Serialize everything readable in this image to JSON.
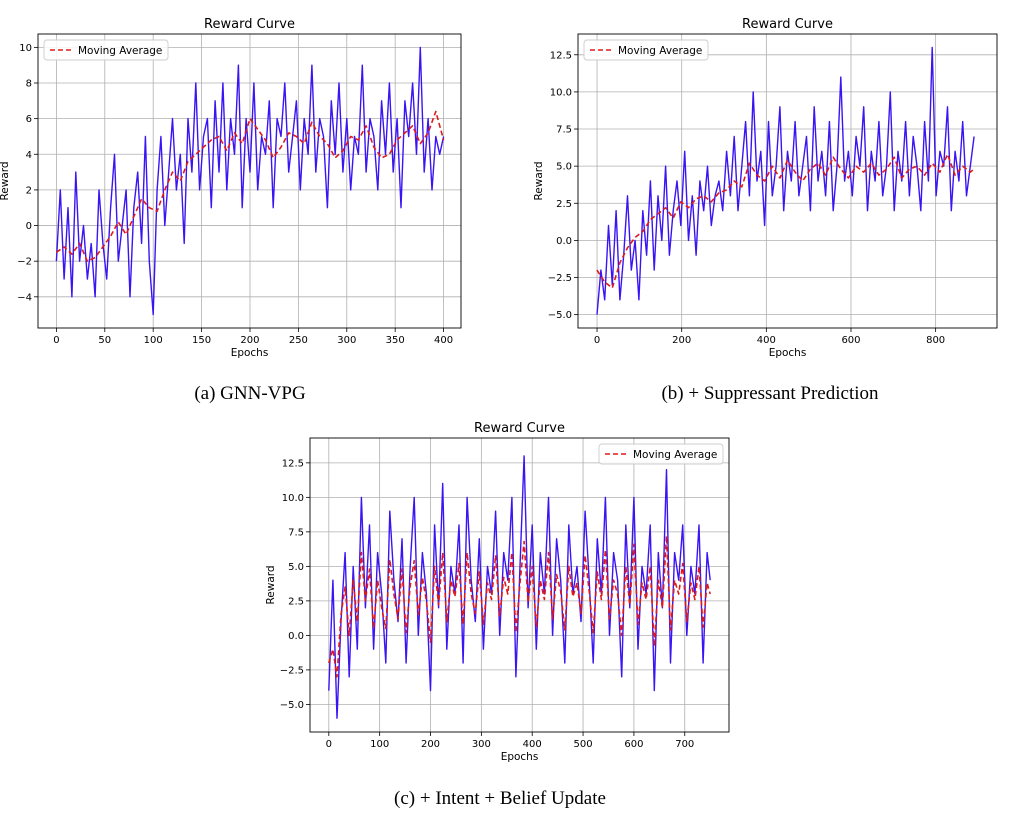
{
  "figure": {
    "captions": [
      "(a) GNN-VPG",
      "(b) + Suppressant Prediction",
      "(c) + Intent + Belief Update"
    ]
  },
  "colors": {
    "raw": "#3a14f5",
    "moving_average": "#e01a1a",
    "grid": "#b0b0b0",
    "frame": "#000000"
  },
  "chart_data": [
    {
      "type": "line",
      "title": "Reward Curve",
      "xlabel": "Epochs",
      "ylabel": "Reward",
      "xlim": [
        -19,
        418
      ],
      "ylim": [
        -5.75,
        10.75
      ],
      "xticks": [
        0,
        50,
        100,
        150,
        200,
        250,
        300,
        350,
        400
      ],
      "yticks": [
        -4,
        -2,
        0,
        2,
        4,
        6,
        8,
        10
      ],
      "tick_labels_y": [
        "−4",
        "−2",
        "0",
        "2",
        "4",
        "6",
        "8",
        "10"
      ],
      "grid": true,
      "legend": {
        "placement": "top-left",
        "entries": [
          "Moving Average"
        ]
      },
      "series": [
        {
          "style": "solid",
          "color": "#3a14f5",
          "x": [
            0,
            4,
            8,
            12,
            16,
            20,
            24,
            28,
            32,
            36,
            40,
            44,
            48,
            52,
            56,
            60,
            64,
            68,
            72,
            76,
            80,
            84,
            88,
            92,
            96,
            100,
            104,
            108,
            112,
            116,
            120,
            124,
            128,
            132,
            136,
            140,
            144,
            148,
            152,
            156,
            160,
            164,
            168,
            172,
            176,
            180,
            184,
            188,
            192,
            196,
            200,
            204,
            208,
            212,
            216,
            220,
            224,
            228,
            232,
            236,
            240,
            244,
            248,
            252,
            256,
            260,
            264,
            268,
            272,
            276,
            280,
            284,
            288,
            292,
            296,
            300,
            304,
            308,
            312,
            316,
            320,
            324,
            328,
            332,
            336,
            340,
            344,
            348,
            352,
            356,
            360,
            364,
            368,
            372,
            376,
            380,
            384,
            388,
            392,
            396,
            400
          ],
          "y": [
            -2,
            2,
            -3,
            1,
            -4,
            3,
            -2,
            0,
            -3,
            -1,
            -4,
            2,
            -1,
            -3,
            1,
            4,
            -2,
            0,
            2,
            -4,
            1,
            3,
            -1,
            5,
            -2,
            -5,
            2,
            5,
            0,
            3,
            6,
            2,
            4,
            -1,
            6,
            3,
            8,
            2,
            5,
            6,
            1,
            7,
            3,
            8,
            2,
            6,
            4,
            9,
            1,
            6,
            3,
            8,
            2,
            5,
            4,
            7,
            1,
            6,
            5,
            8,
            3,
            5,
            7,
            2,
            6,
            4,
            9,
            3,
            6,
            5,
            1,
            7,
            4,
            8,
            3,
            6,
            2,
            5,
            4,
            9,
            3,
            6,
            5,
            2,
            7,
            4,
            8,
            3,
            6,
            1,
            7,
            5,
            8,
            4,
            10,
            3,
            6,
            2,
            5,
            4,
            5
          ]
        },
        {
          "name": "Moving Average",
          "style": "dashed",
          "color": "#e01a1a",
          "x": [
            0,
            8,
            16,
            24,
            32,
            40,
            48,
            56,
            64,
            72,
            80,
            88,
            96,
            104,
            112,
            120,
            128,
            136,
            144,
            152,
            160,
            168,
            176,
            184,
            192,
            200,
            208,
            216,
            224,
            232,
            240,
            248,
            256,
            264,
            272,
            280,
            288,
            296,
            304,
            312,
            320,
            328,
            336,
            344,
            352,
            360,
            368,
            376,
            384,
            392,
            400
          ],
          "y": [
            -1.5,
            -1.2,
            -1.6,
            -1.0,
            -2.0,
            -1.8,
            -1.2,
            -0.6,
            0.2,
            -0.5,
            0.5,
            1.5,
            1.0,
            0.8,
            2.0,
            3.0,
            2.5,
            3.6,
            4.0,
            4.4,
            4.8,
            5.0,
            4.2,
            5.2,
            4.6,
            6.0,
            5.4,
            4.8,
            3.8,
            4.4,
            5.2,
            5.0,
            4.6,
            5.8,
            5.0,
            4.6,
            3.8,
            4.2,
            5.0,
            4.8,
            5.6,
            4.4,
            3.8,
            4.0,
            4.8,
            5.2,
            5.6,
            4.6,
            5.2,
            6.4,
            4.8
          ]
        }
      ]
    },
    {
      "type": "line",
      "title": "Reward Curve",
      "xlabel": "Epochs",
      "ylabel": "Reward",
      "xlim": [
        -45,
        945
      ],
      "ylim": [
        -5.9,
        13.9
      ],
      "xticks": [
        0,
        200,
        400,
        600,
        800
      ],
      "yticks": [
        -5.0,
        -2.5,
        0.0,
        2.5,
        5.0,
        7.5,
        10.0,
        12.5
      ],
      "tick_labels_y": [
        "−5.0",
        "−2.5",
        "0.0",
        "2.5",
        "5.0",
        "7.5",
        "10.0",
        "12.5"
      ],
      "grid": true,
      "legend": {
        "placement": "top-left",
        "entries": [
          "Moving Average"
        ]
      },
      "series": [
        {
          "style": "solid",
          "color": "#3a14f5",
          "x": [
            0,
            9,
            18,
            27,
            36,
            45,
            54,
            63,
            72,
            81,
            90,
            99,
            108,
            117,
            126,
            135,
            144,
            153,
            162,
            171,
            180,
            189,
            198,
            207,
            216,
            225,
            234,
            243,
            252,
            261,
            270,
            279,
            288,
            297,
            306,
            315,
            324,
            333,
            342,
            351,
            360,
            369,
            378,
            387,
            396,
            405,
            414,
            423,
            432,
            441,
            450,
            459,
            468,
            477,
            486,
            495,
            504,
            513,
            522,
            531,
            540,
            549,
            558,
            567,
            576,
            585,
            594,
            603,
            612,
            621,
            630,
            639,
            648,
            657,
            666,
            675,
            684,
            693,
            702,
            711,
            720,
            729,
            738,
            747,
            756,
            765,
            774,
            783,
            792,
            801,
            810,
            819,
            828,
            837,
            846,
            855,
            864,
            873,
            882,
            891
          ],
          "y": [
            -5,
            -2,
            -4,
            1,
            -3,
            2,
            -4,
            -1,
            3,
            -2,
            0,
            -4,
            2,
            -1,
            4,
            -2,
            3,
            0,
            5,
            -1,
            2,
            4,
            1,
            6,
            0,
            3,
            -1,
            4,
            2,
            5,
            1,
            3,
            4,
            2,
            6,
            3,
            7,
            2,
            5,
            8,
            3,
            10,
            4,
            6,
            1,
            8,
            3,
            5,
            9,
            2,
            6,
            4,
            8,
            3,
            5,
            7,
            2,
            9,
            4,
            6,
            3,
            8,
            2,
            5,
            11,
            4,
            6,
            3,
            7,
            5,
            9,
            2,
            6,
            4,
            8,
            3,
            5,
            10,
            2,
            6,
            4,
            8,
            3,
            7,
            5,
            2,
            8,
            4,
            13,
            3,
            6,
            5,
            9,
            2,
            6,
            4,
            8,
            3,
            5,
            7
          ]
        },
        {
          "name": "Moving Average",
          "style": "dashed",
          "color": "#e01a1a",
          "x": [
            0,
            18,
            36,
            54,
            72,
            90,
            108,
            126,
            144,
            162,
            180,
            198,
            216,
            234,
            252,
            270,
            288,
            306,
            324,
            342,
            360,
            378,
            396,
            414,
            432,
            450,
            468,
            486,
            504,
            522,
            540,
            558,
            576,
            594,
            612,
            630,
            648,
            666,
            684,
            702,
            720,
            738,
            756,
            774,
            792,
            810,
            828,
            846,
            864,
            882,
            891
          ],
          "y": [
            -2.0,
            -2.8,
            -3.2,
            -1.5,
            -0.5,
            0.2,
            0.6,
            1.4,
            1.8,
            2.2,
            1.5,
            2.6,
            2.2,
            2.8,
            3.0,
            2.6,
            3.2,
            3.4,
            4.0,
            3.6,
            5.2,
            4.4,
            4.0,
            5.0,
            4.2,
            5.4,
            4.6,
            4.0,
            4.8,
            5.2,
            4.4,
            5.6,
            4.8,
            4.2,
            5.0,
            4.6,
            5.2,
            4.4,
            4.8,
            5.6,
            4.2,
            4.8,
            5.0,
            4.4,
            5.2,
            4.6,
            5.8,
            4.4,
            5.0,
            4.6,
            4.8
          ]
        }
      ]
    },
    {
      "type": "line",
      "title": "Reward Curve",
      "xlabel": "Epochs",
      "ylabel": "Reward",
      "xlim": [
        -37,
        787
      ],
      "ylim": [
        -7.0,
        14.3
      ],
      "xticks": [
        0,
        100,
        200,
        300,
        400,
        500,
        600,
        700
      ],
      "yticks": [
        -5.0,
        -2.5,
        0.0,
        2.5,
        5.0,
        7.5,
        10.0,
        12.5
      ],
      "tick_labels_y": [
        "−5.0",
        "−2.5",
        "0.0",
        "2.5",
        "5.0",
        "7.5",
        "10.0",
        "12.5"
      ],
      "grid": true,
      "legend": {
        "placement": "top-right",
        "entries": [
          "Moving Average"
        ]
      },
      "series": [
        {
          "style": "solid",
          "color": "#3a14f5",
          "x": [
            0,
            8,
            16,
            24,
            32,
            40,
            48,
            56,
            64,
            72,
            80,
            88,
            96,
            104,
            112,
            120,
            128,
            136,
            144,
            152,
            160,
            168,
            176,
            184,
            192,
            200,
            208,
            216,
            224,
            232,
            240,
            248,
            256,
            264,
            272,
            280,
            288,
            296,
            304,
            312,
            320,
            328,
            336,
            344,
            352,
            360,
            368,
            376,
            384,
            392,
            400,
            408,
            416,
            424,
            432,
            440,
            448,
            456,
            464,
            472,
            480,
            488,
            496,
            504,
            512,
            520,
            528,
            536,
            544,
            552,
            560,
            568,
            576,
            584,
            592,
            600,
            608,
            616,
            624,
            632,
            640,
            648,
            656,
            664,
            672,
            680,
            688,
            696,
            704,
            712,
            720,
            728,
            736,
            744,
            750
          ],
          "y": [
            -4,
            4,
            -6,
            1,
            6,
            -3,
            5,
            -1,
            10,
            2,
            8,
            -1,
            6,
            3,
            -2,
            9,
            4,
            1,
            7,
            -2,
            5,
            10,
            0,
            6,
            3,
            -4,
            8,
            2,
            11,
            -1,
            5,
            3,
            8,
            -2,
            10,
            4,
            1,
            7,
            -1,
            5,
            3,
            9,
            0,
            6,
            4,
            10,
            -3,
            5,
            13,
            2,
            8,
            -1,
            6,
            3,
            10,
            0,
            7,
            4,
            -2,
            8,
            3,
            5,
            1,
            9,
            4,
            -2,
            7,
            3,
            10,
            0,
            6,
            4,
            -3,
            8,
            2,
            10,
            -1,
            5,
            3,
            8,
            -4,
            6,
            2,
            12,
            -2,
            6,
            4,
            8,
            0,
            5,
            3,
            8,
            -2,
            6,
            4
          ]
        },
        {
          "name": "Moving Average",
          "style": "dashed",
          "color": "#e01a1a",
          "x": [
            0,
            8,
            16,
            24,
            32,
            40,
            48,
            56,
            64,
            72,
            80,
            88,
            96,
            104,
            112,
            120,
            128,
            136,
            144,
            152,
            160,
            168,
            176,
            184,
            192,
            200,
            208,
            216,
            224,
            232,
            240,
            248,
            256,
            264,
            272,
            280,
            288,
            296,
            304,
            312,
            320,
            328,
            336,
            344,
            352,
            360,
            368,
            376,
            384,
            392,
            400,
            408,
            416,
            424,
            432,
            440,
            448,
            456,
            464,
            472,
            480,
            488,
            496,
            504,
            512,
            520,
            528,
            536,
            544,
            552,
            560,
            568,
            576,
            584,
            592,
            600,
            608,
            616,
            624,
            632,
            640,
            648,
            656,
            664,
            672,
            680,
            688,
            696,
            704,
            712,
            720,
            728,
            736,
            744,
            750
          ],
          "y": [
            -2.0,
            -1.0,
            -3.0,
            1.5,
            3.5,
            0.0,
            4.0,
            1.0,
            6.0,
            2.5,
            4.8,
            0.5,
            4.0,
            2.0,
            0.5,
            5.5,
            3.0,
            1.2,
            4.8,
            0.2,
            3.6,
            5.4,
            1.5,
            4.2,
            2.5,
            -0.5,
            5.0,
            2.2,
            6.0,
            1.0,
            4.0,
            2.8,
            5.2,
            0.8,
            6.0,
            3.0,
            1.6,
            4.6,
            0.8,
            3.8,
            2.6,
            5.8,
            1.4,
            4.2,
            3.0,
            6.0,
            0.2,
            3.8,
            6.8,
            2.4,
            5.0,
            0.6,
            4.0,
            2.6,
            6.0,
            1.2,
            4.4,
            3.2,
            0.4,
            5.0,
            2.8,
            3.8,
            1.6,
            5.8,
            3.2,
            0.2,
            4.6,
            2.6,
            6.2,
            1.2,
            4.0,
            3.0,
            0.0,
            5.0,
            2.2,
            6.6,
            0.8,
            3.8,
            2.6,
            5.0,
            -0.8,
            4.0,
            2.0,
            7.2,
            0.4,
            4.0,
            3.0,
            5.2,
            1.0,
            3.8,
            2.6,
            5.0,
            0.6,
            3.8,
            3.0
          ]
        }
      ]
    }
  ]
}
